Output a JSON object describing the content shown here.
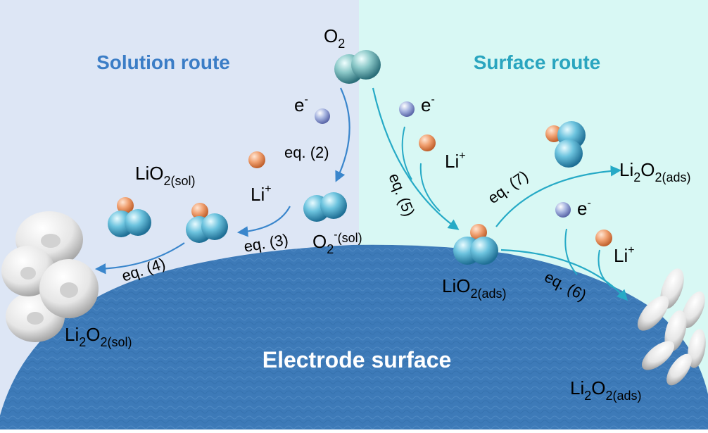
{
  "routes": {
    "solution": "Solution route",
    "surface": "Surface route"
  },
  "electrode": {
    "label": "Electrode surface"
  },
  "species": {
    "o2": {
      "base": "O",
      "sub": "2"
    },
    "electron": {
      "base": "e",
      "sup": "-"
    },
    "li_plus": {
      "base": "Li",
      "sup": "+"
    },
    "lio2_sol": {
      "base": "LiO",
      "sub": "2(sol)"
    },
    "o2_minus_sol": {
      "base": "O",
      "sub": "2",
      "sup": "-",
      "sub2": "(sol)"
    },
    "li2o2_sol": {
      "li": "Li",
      "li_sub": "2",
      "o": "O",
      "o_sub": "2(sol)"
    },
    "lio2_ads": {
      "base": "LiO",
      "sub": "2(ads)"
    },
    "li2o2_ads": {
      "li": "Li",
      "li_sub": "2",
      "o": "O",
      "o_sub": "2(ads)"
    }
  },
  "equations": {
    "eq2": "eq. (2)",
    "eq3": "eq. (3)",
    "eq4": "eq. (4)",
    "eq5": "eq. (5)",
    "eq6": "eq. (6)",
    "eq7": "eq. (7)"
  },
  "colors": {
    "solution_bg": "#dde6f5",
    "surface_bg": "#d8f8f4",
    "solution_title": "#3b7dc6",
    "surface_title": "#2aa5bf",
    "arrow_solution": "#3a86cc",
    "arrow_surface": "#26aac6",
    "electrode": "#3d7ab8",
    "oxygen": "#5ab7d6",
    "lithium": "#f0a070",
    "electron": "#9aa8d8"
  }
}
